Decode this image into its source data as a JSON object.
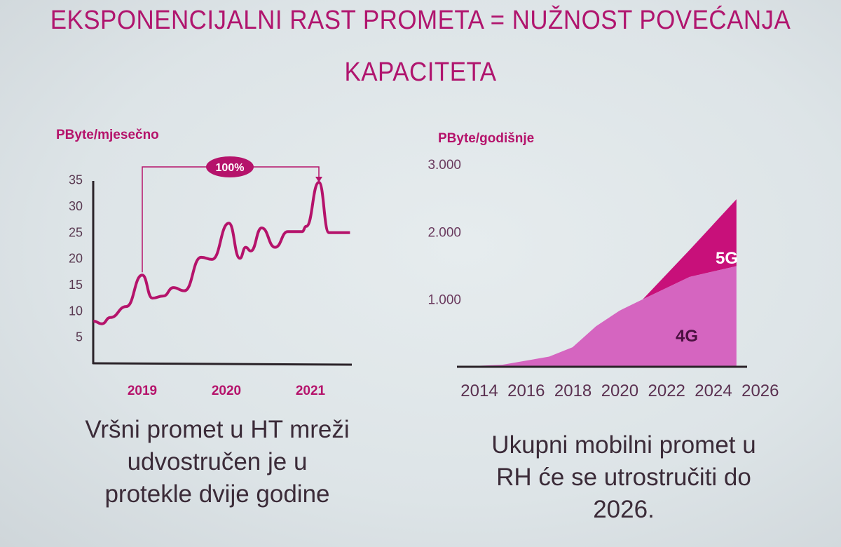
{
  "title": {
    "line1": "EKSPONENCIJALNI RAST PROMETA = NUŽNOST POVEĆANJA",
    "line2": "KAPACITETA"
  },
  "colors": {
    "accent": "#b5136b",
    "area_4g": "#d565c0",
    "area_5g": "#c8107a",
    "axis": "#2a2228",
    "background": "#dfe5e8"
  },
  "chart_data": [
    {
      "type": "line",
      "ylabel": "PByte/mjesečno",
      "yticks": [
        5,
        10,
        15,
        20,
        25,
        30,
        35
      ],
      "ylim": [
        0,
        35
      ],
      "xticks": [
        2019,
        2020,
        2021
      ],
      "xtick_labels": [
        "2019",
        "2020",
        "2021"
      ],
      "xlim": [
        2018.4,
        2021.5
      ],
      "grid": false,
      "series": [
        {
          "x": [
            2018.42,
            2018.52,
            2018.62,
            2018.81,
            2019.0,
            2019.12,
            2019.25,
            2019.37,
            2019.5,
            2019.7,
            2019.83,
            2020.03,
            2020.16,
            2020.23,
            2020.29,
            2020.42,
            2020.58,
            2020.73,
            2020.9,
            2020.95,
            2021.1,
            2021.22,
            2021.47
          ],
          "y": [
            7.9,
            7.4,
            8.6,
            10.7,
            16.7,
            12.3,
            12.7,
            14.3,
            13.7,
            20.1,
            19.7,
            26.6,
            19.9,
            22,
            21.3,
            25.7,
            22,
            25,
            25,
            26,
            34.4,
            24.8,
            24.8
          ]
        }
      ],
      "annotation": {
        "label": "100%",
        "from_x": 2019.0,
        "to_x": 2021.1
      }
    },
    {
      "type": "area",
      "ylabel": "PByte/godišnje",
      "ytick_labels": [
        "1.000",
        "2.000",
        "3.000"
      ],
      "yticks": [
        1000,
        2000,
        3000
      ],
      "ylim": [
        0,
        3000
      ],
      "xtick_labels": [
        "2014",
        "2016",
        "2018",
        "2020",
        "2022",
        "2024",
        "2026"
      ],
      "xticks": [
        2014,
        2016,
        2018,
        2020,
        2022,
        2024,
        2026
      ],
      "grid": false,
      "x": [
        2013,
        2015,
        2017,
        2018,
        2019,
        2020,
        2021,
        2023,
        2025
      ],
      "series": [
        {
          "name": "4G",
          "values": [
            0,
            30,
            150,
            290,
            600,
            830,
            1000,
            1330,
            1490
          ]
        },
        {
          "name": "5G",
          "values": [
            0,
            0,
            0,
            0,
            0,
            0,
            0,
            400,
            990
          ]
        }
      ]
    }
  ],
  "captions": {
    "left": [
      "Vršni promet u HT mreži",
      "udvostručen je u",
      "protekle dvije godine"
    ],
    "right": [
      "Ukupni mobilni promet u",
      "RH će se utrostručiti do",
      "2026."
    ]
  }
}
